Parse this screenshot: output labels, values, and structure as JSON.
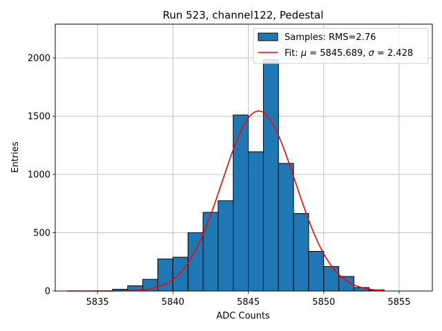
{
  "chart_data": {
    "type": "bar",
    "title": "Run 523, channel122, Pedestal",
    "xlabel": "ADC Counts",
    "ylabel": "Entries",
    "xlim": [
      5832.2,
      5857.2
    ],
    "ylim": [
      0,
      2290
    ],
    "grid": true,
    "legend_position": "top-right",
    "x_ticks": [
      5835,
      5840,
      5845,
      5850,
      5855
    ],
    "y_ticks": [
      0,
      500,
      1000,
      1500,
      2000
    ],
    "histogram": {
      "name": "Samples: RMS=2.76",
      "color": "#1f77b4",
      "bin_start": 5836,
      "bin_width": 1,
      "counts": [
        15,
        45,
        100,
        275,
        290,
        500,
        675,
        775,
        1510,
        1195,
        1985,
        1095,
        665,
        340,
        210,
        125,
        30,
        10
      ]
    },
    "fit": {
      "name_prefix": "Fit: ",
      "name_mu": "μ",
      "name_mid": " = 5845.689, ",
      "name_sigma": "σ",
      "name_suffix": " = 2.428",
      "color": "#ff0000",
      "mu": 5845.689,
      "sigma": 2.428,
      "amplitude": 1545,
      "x_range": [
        5833,
        5854
      ]
    }
  }
}
